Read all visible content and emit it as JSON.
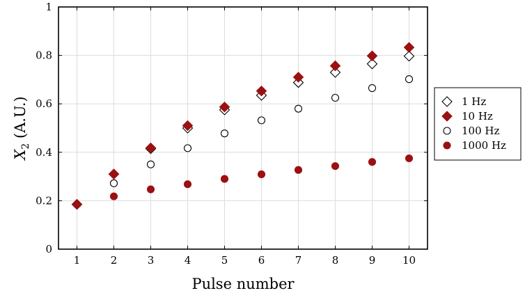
{
  "chart_data": {
    "type": "scatter",
    "xlabel": "Pulse number",
    "ylabel_main": "X",
    "ylabel_sub": "2",
    "ylabel_rest": " (A.U.)",
    "xlim": [
      0.5,
      10.5
    ],
    "ylim": [
      0,
      1
    ],
    "xticks": [
      1,
      2,
      3,
      4,
      5,
      6,
      7,
      8,
      9,
      10
    ],
    "yticks": [
      0,
      0.2,
      0.4,
      0.6,
      0.8,
      1
    ],
    "ytick_labels": [
      "0",
      "0.2",
      "0.4",
      "0.6",
      "0.8",
      "1"
    ],
    "grid": true,
    "legend_position": "right",
    "series": [
      {
        "name": "1 Hz",
        "marker": "diamond-open",
        "color": "#000000",
        "x": [
          1,
          2,
          3,
          4,
          5,
          6,
          7,
          8,
          9,
          10
        ],
        "y": [
          0.185,
          0.31,
          0.415,
          0.5,
          0.575,
          0.635,
          0.688,
          0.73,
          0.765,
          0.797
        ]
      },
      {
        "name": "10 Hz",
        "marker": "diamond-filled",
        "color": "#9b1111",
        "x": [
          1,
          2,
          3,
          4,
          5,
          6,
          7,
          8,
          9,
          10
        ],
        "y": [
          0.185,
          0.31,
          0.418,
          0.51,
          0.587,
          0.653,
          0.71,
          0.757,
          0.798,
          0.833
        ]
      },
      {
        "name": "100 Hz",
        "marker": "circle-open",
        "color": "#000000",
        "x": [
          1,
          2,
          3,
          4,
          5,
          6,
          7,
          8,
          9,
          10
        ],
        "y": [
          0.185,
          0.272,
          0.35,
          0.417,
          0.478,
          0.532,
          0.58,
          0.625,
          0.665,
          0.702
        ]
      },
      {
        "name": "1000 Hz",
        "marker": "circle-filled",
        "color": "#9b1111",
        "x": [
          1,
          2,
          3,
          4,
          5,
          6,
          7,
          8,
          9,
          10
        ],
        "y": [
          0.185,
          0.218,
          0.247,
          0.268,
          0.29,
          0.309,
          0.327,
          0.343,
          0.36,
          0.375
        ]
      }
    ]
  }
}
